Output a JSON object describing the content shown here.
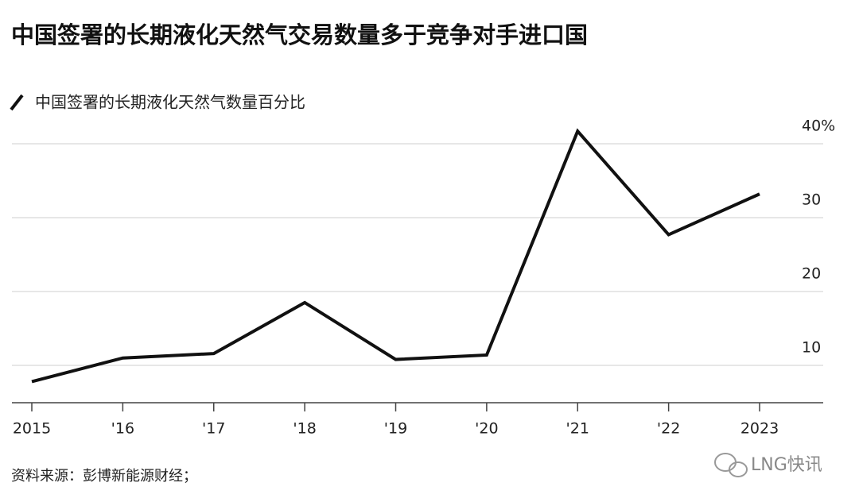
{
  "chart_data": {
    "type": "line",
    "title": "中国签署的长期液化天然气交易数量多于竞争对手进口国",
    "categories": [
      "2015",
      "'16",
      "'17",
      "'18",
      "'19",
      "'20",
      "'21",
      "'22",
      "2023"
    ],
    "series": [
      {
        "name": "中国签署的长期液化天然气数量百分比",
        "color": "#111111",
        "values": [
          7.8,
          11.0,
          11.6,
          18.5,
          10.8,
          11.4,
          41.7,
          27.7,
          33.2
        ]
      }
    ],
    "ylim": [
      5,
      42
    ],
    "yticks": [
      10,
      20,
      30,
      {
        "value": 40,
        "label": "40%"
      }
    ],
    "grid": true,
    "source": "资料来源：彭博新能源财经；",
    "watermark": "LNG快讯"
  }
}
